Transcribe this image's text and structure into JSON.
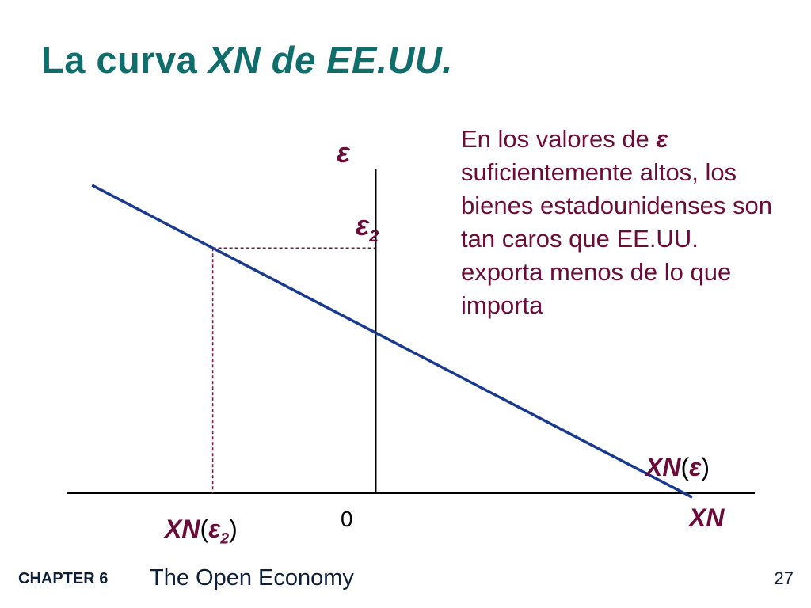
{
  "title": {
    "prefix": "La curva ",
    "emphasis": "XN de EE.UU."
  },
  "callout": {
    "line1_prefix": "En los valores de ",
    "line1_symbol": "ε",
    "rest": "suficientemente altos, los bienes estadounidenses son tan caros que EE.UU. exporta menos de lo que importa"
  },
  "footer": {
    "chapter": "CHAPTER 6",
    "subtitle": "The Open Economy",
    "page": "27"
  },
  "colors": {
    "title": "#0f6e6c",
    "label": "#6b0b3a",
    "curve": "#1a3a8f",
    "dashed": "#7a1a3a",
    "axis": "#000000"
  },
  "chart_data": {
    "type": "line",
    "title": "",
    "xlabel": "XN",
    "ylabel": "ε",
    "origin_label": "0",
    "series": [
      {
        "name": "XN(ε)",
        "x": [
          -3.22,
          3.59
        ],
        "y": [
          2.13,
          -1.9
        ]
      }
    ],
    "highlight_point": {
      "x": -1.85,
      "y": 1.32,
      "x_label": "XN(ε2)",
      "y_label": "ε2"
    },
    "xlim": [
      -3.5,
      4.3
    ],
    "ylim": [
      -2.0,
      2.6
    ],
    "grid": false,
    "curve_label": {
      "name": "XN",
      "arg": "ε"
    }
  }
}
